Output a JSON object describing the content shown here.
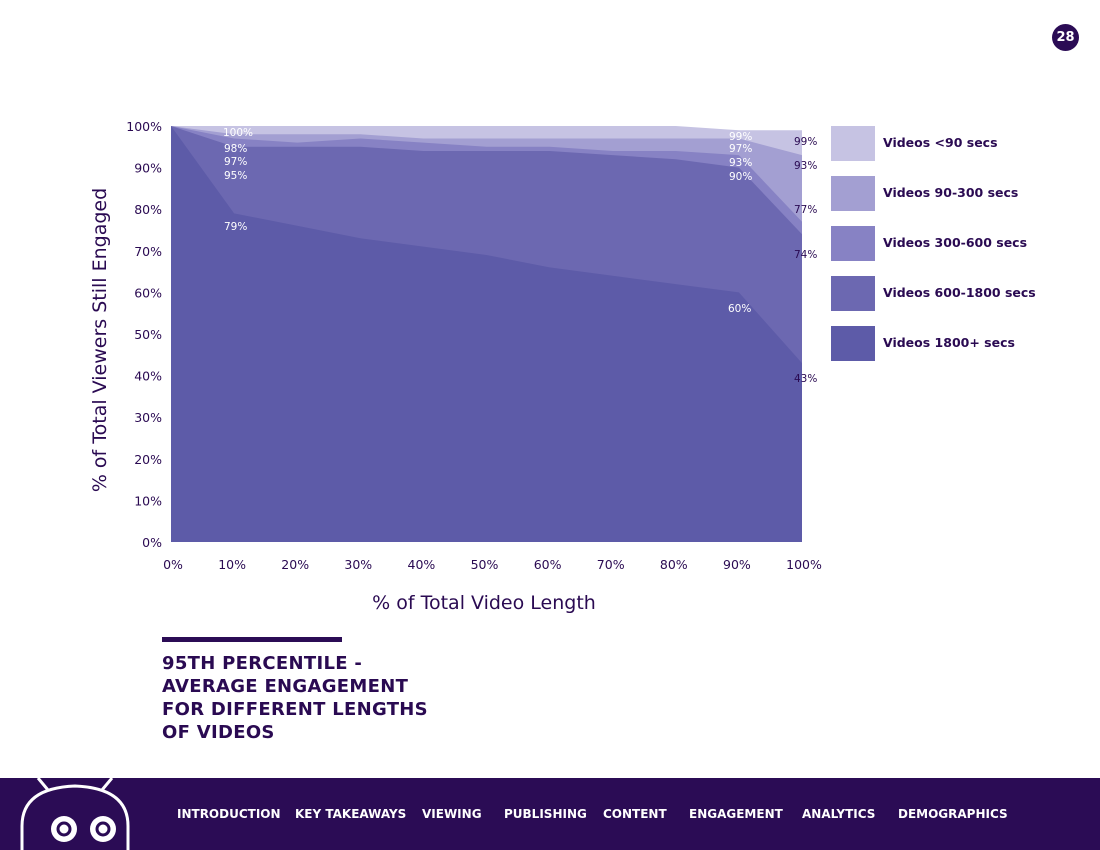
{
  "page_number": "28",
  "caption_lines": [
    "95TH PERCENTILE -",
    "AVERAGE ENGAGEMENT",
    "FOR DIFFERENT LENGTHS",
    "OF VIDEOS"
  ],
  "nav": [
    "INTRODUCTION",
    "KEY TAKEAWAYS",
    "VIEWING",
    "PUBLISHING",
    "CONTENT",
    "ENGAGEMENT",
    "ANALYTICS",
    "DEMOGRAPHICS"
  ],
  "chart_data": {
    "type": "area",
    "title": "95TH PERCENTILE - AVERAGE ENGAGEMENT FOR DIFFERENT LENGTHS OF VIDEOS",
    "xlabel": "% of Total Video Length",
    "ylabel": "% of Total Viewers Still Engaged",
    "x": [
      0,
      10,
      20,
      30,
      40,
      50,
      60,
      70,
      80,
      90,
      100
    ],
    "x_tick_labels": [
      "0%",
      "10%",
      "20%",
      "30%",
      "40%",
      "50%",
      "60%",
      "70%",
      "80%",
      "90%",
      "100%"
    ],
    "y_tick_labels": [
      "0%",
      "10%",
      "20%",
      "30%",
      "40%",
      "50%",
      "60%",
      "70%",
      "80%",
      "90%",
      "100%"
    ],
    "xlim": [
      0,
      100
    ],
    "ylim": [
      0,
      100
    ],
    "legend_position": "right",
    "series": [
      {
        "name": "Videos <90 secs",
        "color": "#c6c3e3",
        "values": [
          100,
          100,
          100,
          100,
          100,
          100,
          100,
          100,
          100,
          99,
          99
        ]
      },
      {
        "name": "Videos 90-300 secs",
        "color": "#a39fd2",
        "values": [
          100,
          98,
          98,
          98,
          97,
          97,
          97,
          97,
          97,
          97,
          93
        ]
      },
      {
        "name": "Videos 300-600 secs",
        "color": "#8782c4",
        "values": [
          100,
          97,
          96,
          97,
          96,
          95,
          95,
          94,
          94,
          93,
          77
        ]
      },
      {
        "name": "Videos 600-1800 secs",
        "color": "#6c68b1",
        "values": [
          100,
          95,
          95,
          95,
          94,
          94,
          94,
          93,
          92,
          90,
          74
        ]
      },
      {
        "name": "Videos 1800+ secs",
        "color": "#5d5ba8",
        "values": [
          100,
          79,
          76,
          73,
          71,
          69,
          66,
          64,
          62,
          60,
          43
        ]
      }
    ],
    "data_labels": [
      {
        "x": 10,
        "text": "100%",
        "color": "white"
      },
      {
        "x": 10,
        "text": "98%",
        "color": "white"
      },
      {
        "x": 10,
        "text": "97%",
        "color": "white"
      },
      {
        "x": 10,
        "text": "95%",
        "color": "white"
      },
      {
        "x": 10,
        "text": "79%",
        "color": "white"
      },
      {
        "x": 90,
        "text": "99%",
        "color": "white"
      },
      {
        "x": 90,
        "text": "97%",
        "color": "white"
      },
      {
        "x": 90,
        "text": "93%",
        "color": "white"
      },
      {
        "x": 90,
        "text": "90%",
        "color": "white"
      },
      {
        "x": 90,
        "text": "60%",
        "color": "white"
      },
      {
        "x": 100,
        "text": "99%",
        "color": "dark"
      },
      {
        "x": 100,
        "text": "93%",
        "color": "dark"
      },
      {
        "x": 100,
        "text": "77%",
        "color": "dark"
      },
      {
        "x": 100,
        "text": "74%",
        "color": "dark"
      },
      {
        "x": 100,
        "text": "43%",
        "color": "dark"
      }
    ]
  }
}
